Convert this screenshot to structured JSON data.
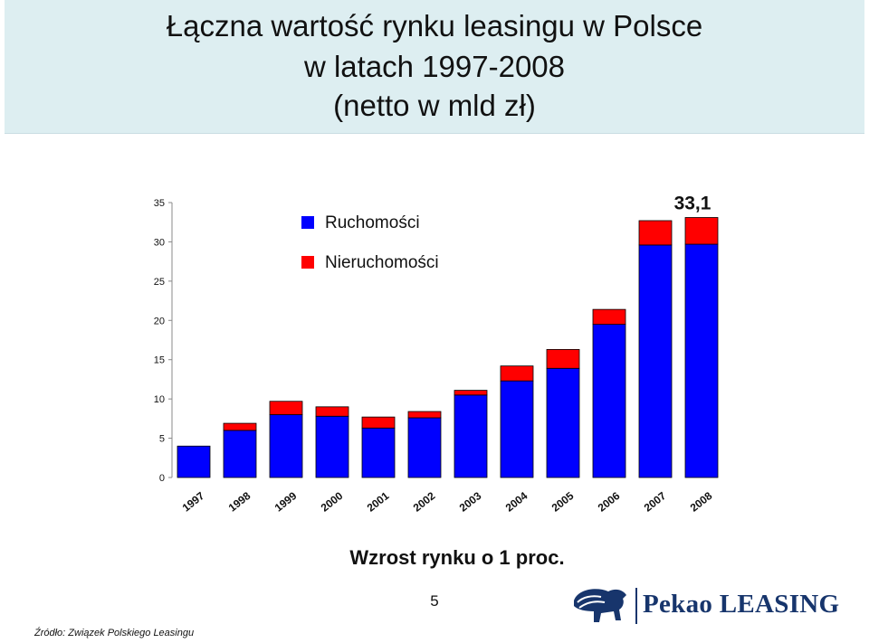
{
  "header": {
    "title_lines": [
      "Łączna wartość rynku leasingu w Polsce",
      "w latach 1997-2008",
      "(netto w mld zł)"
    ]
  },
  "chart_data": {
    "type": "bar",
    "stacked": true,
    "categories": [
      "1997",
      "1998",
      "1999",
      "2000",
      "2001",
      "2002",
      "2003",
      "2004",
      "2005",
      "2006",
      "2007",
      "2008"
    ],
    "series": [
      {
        "name": "Ruchomości",
        "color": "#0000ff",
        "values": [
          4.0,
          6.0,
          8.0,
          7.8,
          6.3,
          7.6,
          10.5,
          12.3,
          13.9,
          19.5,
          29.6,
          29.7
        ]
      },
      {
        "name": "Nieruchomości",
        "color": "#ff0000",
        "values": [
          0.0,
          0.9,
          1.7,
          1.2,
          1.4,
          0.8,
          0.6,
          1.9,
          2.4,
          1.9,
          3.1,
          3.4
        ]
      }
    ],
    "ylim": [
      0,
      35
    ],
    "yticks": [
      0,
      5,
      10,
      15,
      20,
      25,
      30,
      35
    ],
    "annotation": {
      "text": "33,1",
      "category": "2008"
    },
    "legend_position": "top-left"
  },
  "footer": {
    "growth_text": "Wzrost rynku o 1 proc.",
    "page_number": "5",
    "source": "Źródło: Związek Polskiego Leasingu",
    "logo_text": "Pekao LEASING"
  },
  "colors": {
    "title_band": "#ddeef1",
    "logo": "#17356c"
  }
}
